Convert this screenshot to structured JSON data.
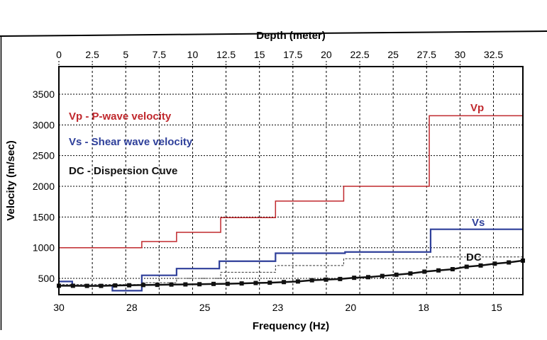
{
  "chart_data": {
    "type": "line",
    "title": "",
    "top_axis": {
      "label": "Depth (meter)",
      "range": [
        0,
        34.7
      ],
      "ticks": [
        0,
        2.5,
        5,
        7.5,
        10,
        12.5,
        15,
        17.5,
        20,
        22.5,
        25,
        27.5,
        30,
        32.5
      ],
      "tick_labels": [
        "0",
        "2.5",
        "5",
        "7.5",
        "10",
        "12.5",
        "15",
        "17.5",
        "20",
        "22.5",
        "25",
        "27.5",
        "30",
        "32.5"
      ]
    },
    "bottom_axis": {
      "label": "Frequency (Hz)",
      "tick_labels": [
        "30",
        "28",
        "25",
        "23",
        "20",
        "18",
        "15"
      ]
    },
    "y_axis": {
      "label": "Velocity (m/sec)",
      "range": [
        235,
        3950
      ],
      "ticks": [
        500,
        1000,
        1500,
        2000,
        2500,
        3000,
        3500
      ],
      "tick_labels": [
        "500",
        "1000",
        "1500",
        "2000",
        "2500",
        "3000",
        "3500"
      ]
    },
    "grid": true,
    "legend": {
      "placement": "top-left",
      "entries": [
        {
          "text": "Vp - P-wave velocity",
          "color": "#c0282d"
        },
        {
          "text": "Vs - Shear wave velocity",
          "color": "#2e3f9a"
        },
        {
          "text": "DC - Dispersion Cuve",
          "color": "#111111"
        }
      ]
    },
    "series": [
      {
        "name": "Vp",
        "color": "#c0282d",
        "style": "step",
        "depth_breaks": [
          0,
          6.2,
          8.8,
          12.1,
          16.2,
          21.3,
          27.7,
          34.7
        ],
        "values": [
          1000,
          1100,
          1250,
          1490,
          1760,
          2000,
          3150
        ]
      },
      {
        "name": "Vs",
        "color": "#2e3f9a",
        "style": "step",
        "depth_breaks": [
          0,
          1.0,
          4.0,
          6.2,
          8.8,
          12.0,
          16.2,
          21.4,
          27.8,
          34.7
        ],
        "values": [
          450,
          380,
          300,
          550,
          660,
          780,
          910,
          930,
          1300
        ]
      },
      {
        "name": "",
        "color": "#333333",
        "style": "dashed-step",
        "depth_breaks": [
          0,
          6.2,
          8.8,
          12.1,
          16.2,
          21.3,
          27.7,
          34.7
        ],
        "values": [
          400,
          430,
          500,
          600,
          710,
          820,
          850
        ]
      },
      {
        "name": "DC",
        "color": "#111111",
        "style": "markers",
        "values": [
          380,
          380,
          378,
          378,
          385,
          388,
          392,
          395,
          400,
          402,
          405,
          410,
          412,
          418,
          425,
          430,
          440,
          450,
          470,
          480,
          490,
          510,
          520,
          540,
          560,
          580,
          610,
          630,
          650,
          690,
          710,
          740,
          760,
          790
        ]
      }
    ],
    "series_labels": [
      "Vp",
      "Vs",
      "DC"
    ]
  }
}
